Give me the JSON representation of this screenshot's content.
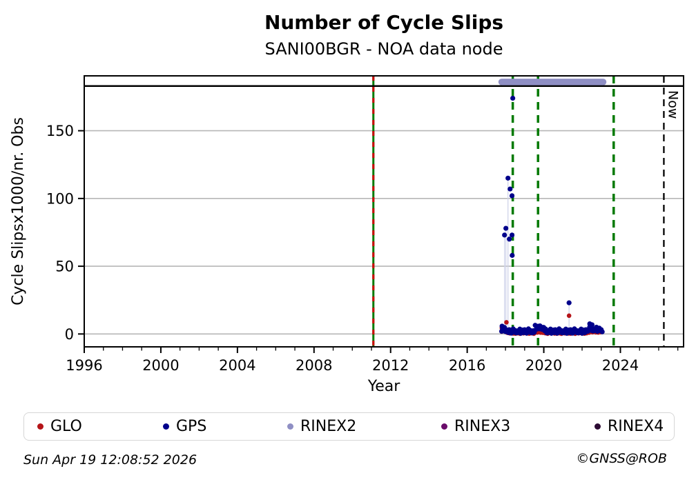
{
  "footer": {
    "timestamp": "Sun Apr 19 12:08:52 2026",
    "copyright": "©GNSS@ROB"
  },
  "legend": {
    "items": [
      {
        "label": "GLO",
        "color": "#b51418"
      },
      {
        "label": "GPS",
        "color": "#00008b"
      },
      {
        "label": "RINEX2",
        "color": "#8f8fc4"
      },
      {
        "label": "RINEX3",
        "color": "#6a0c6a"
      },
      {
        "label": "RINEX4",
        "color": "#2c0b33"
      }
    ]
  },
  "chart_data": {
    "type": "scatter",
    "title": "Number of Cycle Slips",
    "subtitle": "SANI00BGR - NOA data node",
    "xlabel": "Year",
    "ylabel": "Cycle Slipsx1000/nr. Obs",
    "xlim": [
      1996,
      2027.3
    ],
    "ylim": [
      -9.5,
      190.5
    ],
    "xticks": [
      1996,
      2000,
      2004,
      2008,
      2012,
      2016,
      2020,
      2024
    ],
    "x_minor_step": 1,
    "yticks": [
      0,
      50,
      100,
      150
    ],
    "grid": "horizontal light-gray lines at y ticks",
    "legend_position": "bottom row, outside axes",
    "colors": {
      "grid": "#b6b6b6",
      "event_green": "#007a00",
      "event_red_overlay": "#cc0000",
      "now_line": "#000000",
      "stem": "#d0d4ea",
      "top_line": "#000000"
    },
    "top_reference_line_y": 183,
    "now_line": {
      "x": 2026.27,
      "label": "Now"
    },
    "event_lines": [
      {
        "x": 2011.1,
        "color": "#007a00",
        "style": "solid",
        "overlay": {
          "color": "#cc0000",
          "style": "dashed"
        }
      },
      {
        "x": 2018.38,
        "color": "#007a00",
        "style": "dashed"
      },
      {
        "x": 2019.7,
        "color": "#007a00",
        "style": "dashed"
      },
      {
        "x": 2023.65,
        "color": "#007a00",
        "style": "dashed"
      }
    ],
    "rinex2_bar": {
      "name": "RINEX2",
      "color": "#8f8fc4",
      "y": 186,
      "x_start": 2017.8,
      "x_end": 2023.1
    },
    "stems": [
      [
        2017.95,
        73
      ],
      [
        2018.02,
        78
      ],
      [
        2018.13,
        115
      ],
      [
        2021.32,
        23
      ]
    ],
    "series": [
      {
        "name": "GLO",
        "color": "#b51418",
        "cluster": {
          "x_start": 2017.8,
          "x_step": 0.06,
          "values": [
            1.8,
            2.6,
            2.1,
            3.1,
            1.7,
            0.9,
            1.4,
            0.5,
            1.9,
            0.8,
            0.4,
            1.2,
            0.3,
            1.1,
            0.6,
            1.6,
            0.2,
            0.9,
            1.4,
            0.5,
            1.9,
            0.8,
            0.4,
            1.2,
            0.3,
            1.1,
            0.6,
            1.6,
            0.2,
            0.9,
            2.0,
            1.1,
            2.5,
            1.4,
            1.0,
            1.8,
            0.9,
            1.1,
            0.6,
            1.6,
            0.2,
            0.9,
            1.4,
            0.5,
            1.9,
            0.8,
            0.4,
            1.2,
            0.3,
            1.1,
            0.6,
            1.6,
            0.2,
            0.9,
            1.4,
            0.5,
            1.9,
            0.8,
            0.4,
            1.2,
            0.3,
            1.1,
            0.6,
            1.6,
            0.2,
            0.9,
            1.4,
            0.5,
            1.9,
            0.8,
            0.4,
            1.2,
            0.3,
            1.1,
            0.6,
            2.4,
            1.0,
            1.7,
            2.2,
            1.3,
            2.7,
            1.6,
            1.2,
            2.0,
            1.1,
            1.9,
            1.4,
            1.6
          ]
        },
        "outliers": [
          [
            2017.81,
            4.5
          ],
          [
            2018.05,
            8.6
          ],
          [
            2021.32,
            13.5
          ]
        ]
      },
      {
        "name": "GPS",
        "color": "#00008b",
        "cluster": {
          "x_start": 2017.8,
          "x_step": 0.05,
          "values": [
            2.0,
            3.6,
            2.4,
            4.8,
            1.7,
            1.9,
            2.9,
            1.0,
            3.2,
            1.6,
            0.6,
            2.1,
            3.8,
            1.3,
            2.6,
            0.9,
            0.8,
            2.4,
            1.2,
            3.6,
            0.5,
            1.9,
            2.9,
            1.0,
            3.2,
            1.6,
            0.6,
            2.1,
            3.8,
            1.3,
            2.6,
            0.9,
            0.8,
            2.4,
            1.2,
            6.4,
            3.3,
            4.7,
            5.7,
            3.8,
            6.0,
            4.4,
            3.4,
            4.9,
            4.8,
            2.3,
            3.6,
            0.9,
            0.8,
            2.4,
            1.2,
            3.6,
            0.5,
            1.9,
            2.9,
            1.0,
            3.2,
            1.6,
            0.6,
            2.1,
            3.8,
            1.3,
            2.6,
            0.9,
            0.8,
            2.4,
            1.2,
            3.6,
            0.5,
            1.9,
            2.9,
            1.0,
            3.2,
            1.6,
            0.6,
            2.1,
            3.8,
            1.3,
            2.6,
            0.9,
            0.8,
            2.4,
            1.2,
            3.6,
            0.5,
            1.9,
            2.9,
            1.0,
            3.2,
            3.0,
            2.0,
            3.5,
            5.2,
            2.7,
            4.0,
            2.3,
            2.2,
            3.8,
            2.6,
            5.0,
            1.9,
            3.3,
            4.3,
            2.4,
            3.2,
            1.6
          ]
        },
        "outliers": [
          [
            2018.38,
            174
          ],
          [
            2018.13,
            115
          ],
          [
            2018.24,
            107
          ],
          [
            2018.34,
            102
          ],
          [
            2018.02,
            78
          ],
          [
            2017.95,
            73
          ],
          [
            2018.34,
            73
          ],
          [
            2018.2,
            70
          ],
          [
            2018.35,
            58
          ],
          [
            2021.32,
            23
          ],
          [
            2022.4,
            7.5
          ],
          [
            2022.52,
            6.8
          ],
          [
            2017.82,
            5.8
          ]
        ]
      }
    ]
  }
}
